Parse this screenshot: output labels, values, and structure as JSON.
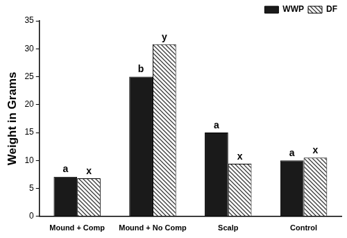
{
  "chart_data": {
    "type": "bar",
    "y_label": "Weight in Grams",
    "categories": [
      "Mound + Comp",
      "Mound + No Comp",
      "Scalp",
      "Control"
    ],
    "series": [
      {
        "name": "WWP",
        "color": "#1a1a1a",
        "values": [
          7.1,
          25,
          15,
          10
        ],
        "letters": [
          "a",
          "b",
          "a",
          "a"
        ]
      },
      {
        "name": "DF",
        "color": "#3a3a3a",
        "values": [
          6.8,
          30.8,
          9.4,
          10.5
        ],
        "letters": [
          "x",
          "y",
          "x",
          "x"
        ]
      }
    ],
    "ylim": [
      0,
      35
    ],
    "yticks": [
      0,
      5,
      10,
      15,
      20,
      25,
      30,
      35
    ],
    "grid": false,
    "legend": "upper right"
  }
}
